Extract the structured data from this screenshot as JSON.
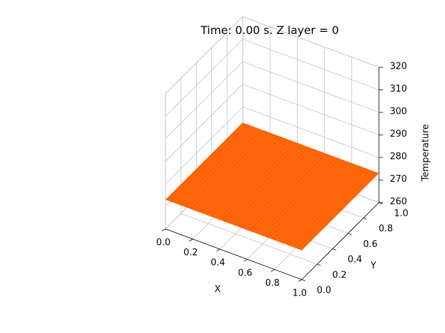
{
  "chart_data": {
    "type": "surface",
    "title": "Time: 0.00 s. Z layer = 0",
    "xlabel": "X",
    "ylabel": "Y",
    "zlabel": "Temperature",
    "xlim": [
      0.0,
      1.0
    ],
    "ylim": [
      0.0,
      1.0
    ],
    "zlim": [
      260,
      320
    ],
    "x_ticks": [
      "0.0",
      "0.2",
      "0.4",
      "0.6",
      "0.8",
      "1.0"
    ],
    "y_ticks": [
      "0.0",
      "0.2",
      "0.4",
      "0.6",
      "0.8",
      "1.0"
    ],
    "z_ticks": [
      "260",
      "270",
      "280",
      "290",
      "300",
      "310",
      "320"
    ],
    "surface": {
      "z_value": 273,
      "color": "#ff5f00",
      "edge_color": "#ff7f2a"
    },
    "grid": true,
    "pane_color": "#ffffff",
    "grid_color": "#bfbfbf"
  }
}
